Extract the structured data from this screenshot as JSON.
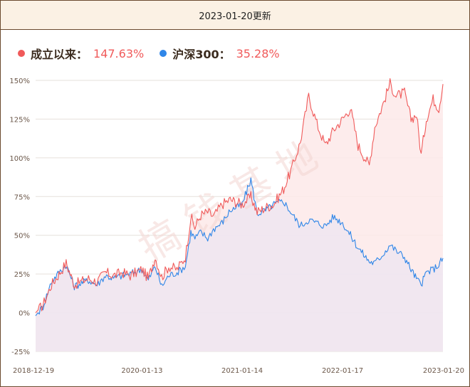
{
  "header": {
    "updated": "2023-01-20更新"
  },
  "legend": [
    {
      "name": "成立以来：",
      "value": "147.63%",
      "color": "#f05a5a"
    },
    {
      "name": "沪深300：",
      "value": "35.28%",
      "color": "#2f86e8"
    }
  ],
  "watermark": "搞 钱 基 地",
  "chart_data": {
    "type": "line",
    "ylim": [
      -25,
      150
    ],
    "y_ticks": [
      "150%",
      "125%",
      "100%",
      "75%",
      "50%",
      "25%",
      "0%",
      "-25%"
    ],
    "x_ticks": [
      "2018-12-19",
      "2020-01-13",
      "2021-01-14",
      "2022-01-17",
      "2023-01-20"
    ],
    "xlim": [
      "2018-12-19",
      "2023-01-20"
    ],
    "series": [
      {
        "name": "成立以来",
        "color": "#f05a5a",
        "fill": "#fde9e9",
        "points": [
          [
            "2018-12-19",
            0
          ],
          [
            "2019-01-15",
            5
          ],
          [
            "2019-02-15",
            18
          ],
          [
            "2019-03-15",
            25
          ],
          [
            "2019-04-10",
            32
          ],
          [
            "2019-04-25",
            25
          ],
          [
            "2019-05-10",
            18
          ],
          [
            "2019-06-01",
            20
          ],
          [
            "2019-07-01",
            22
          ],
          [
            "2019-08-01",
            20
          ],
          [
            "2019-09-01",
            26
          ],
          [
            "2019-10-01",
            24
          ],
          [
            "2019-11-01",
            26
          ],
          [
            "2019-12-01",
            24
          ],
          [
            "2020-01-13",
            28
          ],
          [
            "2020-02-05",
            22
          ],
          [
            "2020-03-01",
            36
          ],
          [
            "2020-03-25",
            23
          ],
          [
            "2020-04-20",
            30
          ],
          [
            "2020-05-20",
            28
          ],
          [
            "2020-06-20",
            36
          ],
          [
            "2020-07-10",
            62
          ],
          [
            "2020-07-25",
            55
          ],
          [
            "2020-08-15",
            63
          ],
          [
            "2020-09-10",
            65
          ],
          [
            "2020-10-01",
            62
          ],
          [
            "2020-11-01",
            70
          ],
          [
            "2020-12-01",
            73
          ],
          [
            "2021-01-14",
            70
          ],
          [
            "2021-02-15",
            75
          ],
          [
            "2021-03-10",
            65
          ],
          [
            "2021-04-10",
            68
          ],
          [
            "2021-05-10",
            70
          ],
          [
            "2021-06-15",
            80
          ],
          [
            "2021-07-15",
            93
          ],
          [
            "2021-08-15",
            110
          ],
          [
            "2021-09-15",
            140
          ],
          [
            "2021-10-15",
            122
          ],
          [
            "2021-11-15",
            108
          ],
          [
            "2021-12-15",
            118
          ],
          [
            "2022-01-17",
            125
          ],
          [
            "2022-02-15",
            132
          ],
          [
            "2022-03-15",
            108
          ],
          [
            "2022-04-25",
            95
          ],
          [
            "2022-05-15",
            120
          ],
          [
            "2022-06-15",
            135
          ],
          [
            "2022-07-10",
            148
          ],
          [
            "2022-08-01",
            140
          ],
          [
            "2022-09-01",
            142
          ],
          [
            "2022-09-25",
            125
          ],
          [
            "2022-10-15",
            128
          ],
          [
            "2022-11-01",
            102
          ],
          [
            "2022-11-20",
            125
          ],
          [
            "2022-12-15",
            138
          ],
          [
            "2023-01-05",
            132
          ],
          [
            "2023-01-20",
            147.63
          ]
        ]
      },
      {
        "name": "沪深300",
        "color": "#2f86e8",
        "fill": "#ece6f1",
        "points": [
          [
            "2018-12-19",
            -2
          ],
          [
            "2019-01-15",
            4
          ],
          [
            "2019-02-15",
            20
          ],
          [
            "2019-03-15",
            26
          ],
          [
            "2019-04-10",
            31
          ],
          [
            "2019-04-25",
            24
          ],
          [
            "2019-05-10",
            17
          ],
          [
            "2019-06-01",
            19
          ],
          [
            "2019-07-01",
            21
          ],
          [
            "2019-08-01",
            18
          ],
          [
            "2019-09-01",
            24
          ],
          [
            "2019-10-01",
            22
          ],
          [
            "2019-11-01",
            24
          ],
          [
            "2019-12-01",
            25
          ],
          [
            "2020-01-13",
            28
          ],
          [
            "2020-02-05",
            21
          ],
          [
            "2020-03-01",
            30
          ],
          [
            "2020-03-25",
            17
          ],
          [
            "2020-04-20",
            24
          ],
          [
            "2020-05-20",
            26
          ],
          [
            "2020-06-20",
            30
          ],
          [
            "2020-07-10",
            52
          ],
          [
            "2020-07-25",
            48
          ],
          [
            "2020-08-15",
            52
          ],
          [
            "2020-09-10",
            48
          ],
          [
            "2020-10-01",
            54
          ],
          [
            "2020-11-01",
            58
          ],
          [
            "2020-12-01",
            66
          ],
          [
            "2021-01-14",
            70
          ],
          [
            "2021-02-15",
            86
          ],
          [
            "2021-03-10",
            64
          ],
          [
            "2021-04-10",
            66
          ],
          [
            "2021-05-10",
            70
          ],
          [
            "2021-06-15",
            72
          ],
          [
            "2021-07-15",
            64
          ],
          [
            "2021-08-15",
            56
          ],
          [
            "2021-09-15",
            60
          ],
          [
            "2021-10-15",
            58
          ],
          [
            "2021-11-15",
            56
          ],
          [
            "2021-12-15",
            62
          ],
          [
            "2022-01-17",
            58
          ],
          [
            "2022-02-15",
            50
          ],
          [
            "2022-03-15",
            42
          ],
          [
            "2022-04-25",
            33
          ],
          [
            "2022-05-15",
            32
          ],
          [
            "2022-06-15",
            38
          ],
          [
            "2022-07-10",
            44
          ],
          [
            "2022-08-01",
            40
          ],
          [
            "2022-09-01",
            36
          ],
          [
            "2022-09-25",
            28
          ],
          [
            "2022-10-15",
            22
          ],
          [
            "2022-11-01",
            18
          ],
          [
            "2022-11-20",
            26
          ],
          [
            "2022-12-15",
            28
          ],
          [
            "2023-01-05",
            31
          ],
          [
            "2023-01-20",
            35.28
          ]
        ]
      }
    ]
  }
}
